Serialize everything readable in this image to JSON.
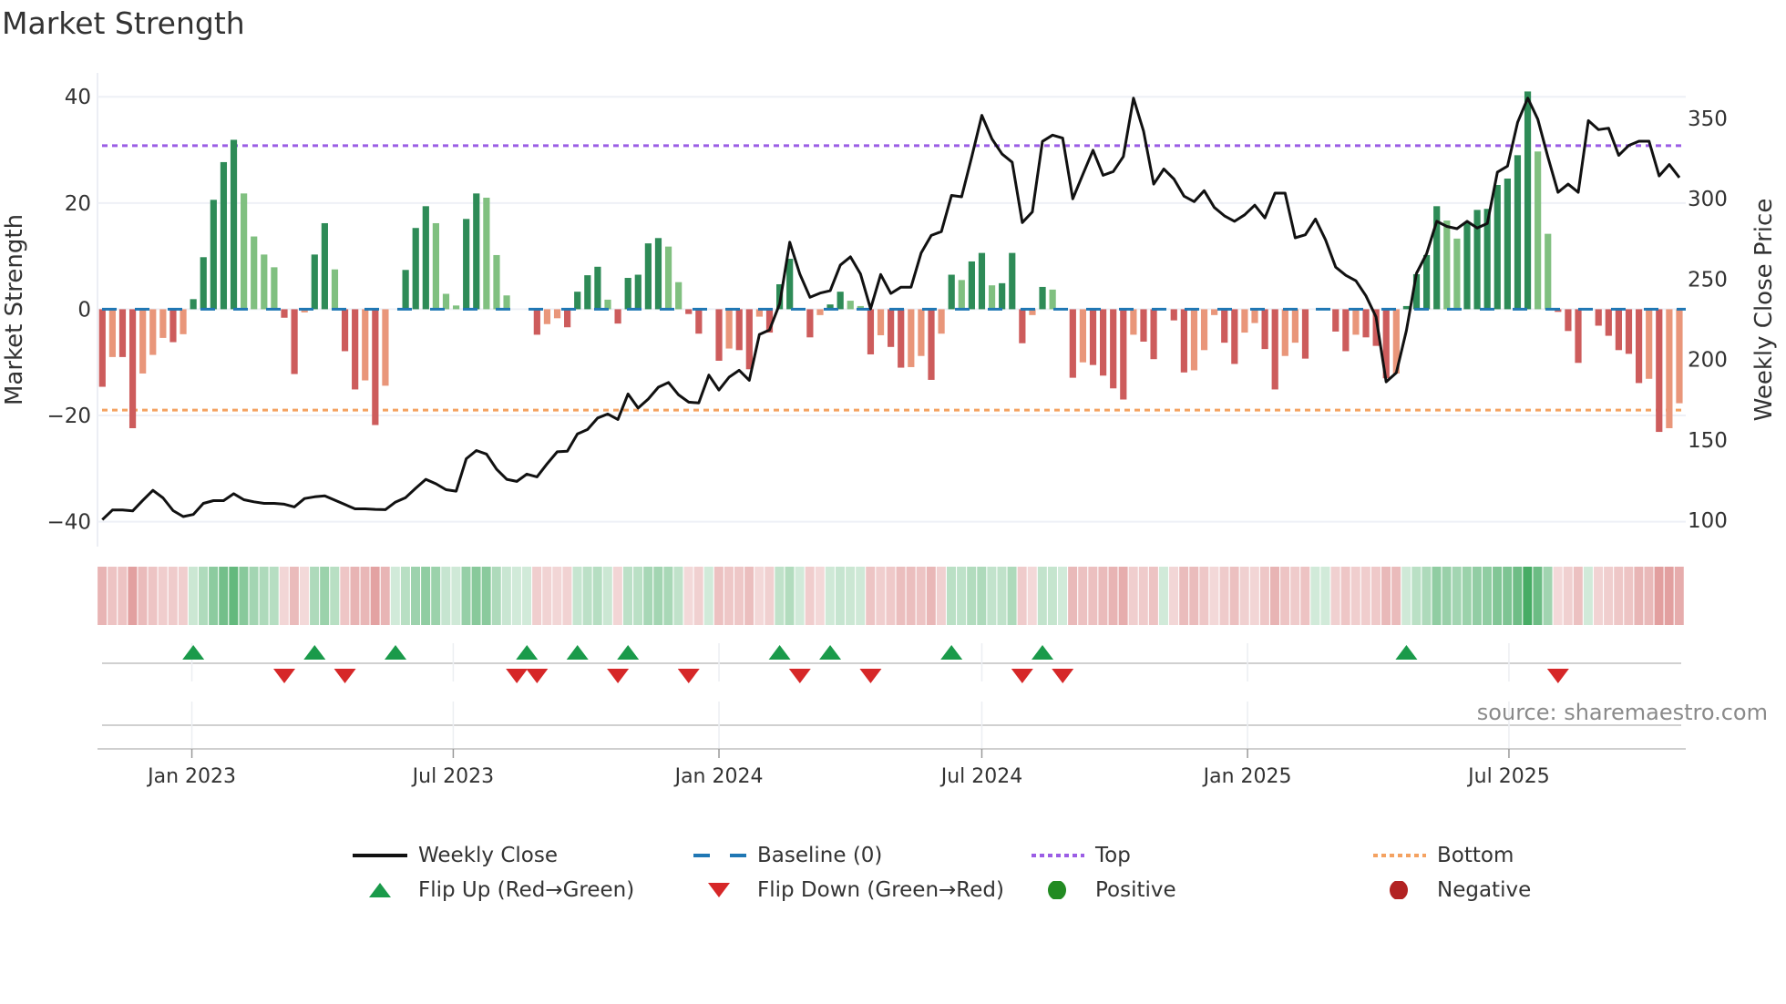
{
  "chart_data": {
    "type": "bar+line",
    "title": "Market Strength",
    "ylabel": "Market Strength",
    "ylabel_right": "Weekly Close Price",
    "ylim": [
      -44.7,
      44.5
    ],
    "ylim_right": [
      83.6,
      378.3
    ],
    "yticks": [
      40,
      20,
      0,
      -20,
      -40
    ],
    "yticks_right": [
      350,
      300,
      250,
      200,
      150,
      100
    ],
    "ytick_labels": [
      "40",
      "20",
      "0",
      "−20",
      "−40"
    ],
    "ytick_labels_right": [
      "350",
      "300",
      "250",
      "200",
      "150",
      "100"
    ],
    "start_date": "2022-10-31",
    "frequency": "weekly",
    "xticks": [
      {
        "label": "Jan 2023",
        "date": "2023-01-01"
      },
      {
        "label": "Jul 2023",
        "date": "2023-07-01"
      },
      {
        "label": "Jan 2024",
        "date": "2024-01-01"
      },
      {
        "label": "Jul 2024",
        "date": "2024-07-01"
      },
      {
        "label": "Jan 2025",
        "date": "2025-01-01"
      },
      {
        "label": "Jul 2025",
        "date": "2025-07-01"
      }
    ],
    "baseline": 0,
    "top_level": 30.8,
    "bottom_level": -19.0,
    "strength": [
      -14.6,
      -9.0,
      -9.0,
      -22.4,
      -12.1,
      -8.6,
      -5.4,
      -6.2,
      -4.7,
      1.9,
      9.8,
      20.6,
      27.7,
      31.9,
      21.8,
      13.7,
      10.3,
      7.9,
      -1.6,
      -12.2,
      -0.6,
      10.3,
      16.2,
      7.5,
      -7.9,
      -15.1,
      -13.4,
      -21.8,
      -14.4,
      0,
      7.4,
      15.3,
      19.4,
      16.2,
      2.9,
      0.7,
      17.0,
      21.8,
      21.0,
      10.2,
      2.6,
      0,
      0,
      -4.8,
      -2.8,
      -1.7,
      -3.4,
      3.3,
      6.4,
      8.0,
      1.8,
      -2.7,
      5.9,
      6.5,
      12.4,
      13.4,
      11.8,
      5.1,
      -0.9,
      -4.6,
      0,
      -9.7,
      -7.4,
      -7.7,
      -11.3,
      -1.4,
      -4.4,
      4.7,
      9.5,
      0,
      -5.3,
      -1.1,
      0.9,
      3.3,
      1.6,
      0.6,
      -8.5,
      -4.9,
      -7.1,
      -11.0,
      -10.9,
      -8.8,
      -13.3,
      -4.6,
      6.5,
      5.5,
      9.0,
      10.6,
      4.5,
      4.9,
      10.6,
      -6.4,
      -1.1,
      4.2,
      3.7,
      0,
      -12.9,
      -10.0,
      -10.5,
      -12.5,
      -14.9,
      -17.0,
      -4.8,
      -6.1,
      -9.4,
      0,
      -2.1,
      -11.9,
      -11.5,
      -7.7,
      -1.1,
      -6.3,
      -10.3,
      -4.4,
      -2.6,
      -7.5,
      -15.1,
      -8.8,
      -6.3,
      -9.3,
      0,
      0,
      -4.2,
      -7.9,
      -4.8,
      -5.3,
      -6.9,
      -13.0,
      -12.1,
      0.6,
      6.6,
      10.2,
      19.4,
      16.7,
      13.3,
      16.2,
      18.7,
      18.9,
      23.4,
      24.6,
      29.0,
      41.0,
      29.7,
      14.2,
      -0.5,
      -4.1,
      -10.1,
      0,
      -3.1,
      -5.0,
      -7.7,
      -8.4,
      -13.9,
      -13.1,
      -23.1,
      -22.4,
      -17.7
    ],
    "weekly_close": [
      100.4,
      106.4,
      106.4,
      105.8,
      112.4,
      118.6,
      113.9,
      106.0,
      102.3,
      103.6,
      110.5,
      112.2,
      112.2,
      116.5,
      112.8,
      111.5,
      110.5,
      110.5,
      110.0,
      108.3,
      113.5,
      114.6,
      115.2,
      112.5,
      109.8,
      107.1,
      107.1,
      106.8,
      106.6,
      111.3,
      114.1,
      119.9,
      125.5,
      122.7,
      119.0,
      118.1,
      138.3,
      143.4,
      141.2,
      131.7,
      125.5,
      124.2,
      128.7,
      127.0,
      135.1,
      142.6,
      143.0,
      153.7,
      156.5,
      163.6,
      166.1,
      162.7,
      178.6,
      169.8,
      175.4,
      182.8,
      185.7,
      178.0,
      173.5,
      173.0,
      190.3,
      181.0,
      189.0,
      193.3,
      187.1,
      215.6,
      218.4,
      234.6,
      273.0,
      253.1,
      238.7,
      241.3,
      242.8,
      258.8,
      263.9,
      253.3,
      231.6,
      252.9,
      241.1,
      245.0,
      245.0,
      266.3,
      277.2,
      279.6,
      302.1,
      301.2,
      326.0,
      351.9,
      337.2,
      327.8,
      322.7,
      285.2,
      291.8,
      335.7,
      339.6,
      337.7,
      300.0,
      315.2,
      330.2,
      314.6,
      316.9,
      326.3,
      362.6,
      342.0,
      309.1,
      318.5,
      312.3,
      301.6,
      298.2,
      305.0,
      294.6,
      289.4,
      286.0,
      290.0,
      296.0,
      288.1,
      303.5,
      303.5,
      275.7,
      277.6,
      287.4,
      274.4,
      257.5,
      252.4,
      249.0,
      239.6,
      226.5,
      186.1,
      191.7,
      218.0,
      253.6,
      265.8,
      286.0,
      282.8,
      281.4,
      286.0,
      281.8,
      284.6,
      316.6,
      320.3,
      347.6,
      362.6,
      349.5,
      326.0,
      304.0,
      309.1,
      304.0,
      348.6,
      343.0,
      343.9,
      327.0,
      333.2,
      335.8,
      335.8,
      314.2,
      321.3,
      313.2
    ],
    "flip_up_weeks": [
      10,
      22,
      30,
      43,
      48,
      53,
      68,
      73,
      85,
      94,
      130
    ],
    "flip_down_weeks": [
      19,
      25,
      42,
      44,
      52,
      59,
      70,
      77,
      92,
      96,
      145
    ],
    "legend_position": "bottom",
    "legend": [
      {
        "label": "Weekly Close",
        "kind": "line"
      },
      {
        "label": "Baseline (0)",
        "kind": "dash"
      },
      {
        "label": "Top",
        "kind": "dot-top"
      },
      {
        "label": "Bottom",
        "kind": "dot-bottom"
      },
      {
        "label": "Flip Up (Red→Green)",
        "kind": "tri-up"
      },
      {
        "label": "Flip Down (Green→Red)",
        "kind": "tri-down"
      },
      {
        "label": "Positive",
        "kind": "dot-pos"
      },
      {
        "label": "Negative",
        "kind": "dot-neg"
      }
    ],
    "source": "source: sharemaestro.com"
  },
  "colors": {
    "pos_strong": "#2e8b57",
    "pos_weak": "#80c080",
    "neg_strong": "#cd5c5c",
    "neg_weak": "#e9967a",
    "line": "#111111",
    "baseline": "#1f77b4",
    "top": "#9b5de5",
    "bottom": "#f4a261",
    "flip_up": "#1a9a4a",
    "flip_down": "#d62728",
    "positive": "#228b22",
    "negative": "#b22222",
    "heat_pos": "46,160,80",
    "heat_neg": "205,92,92"
  }
}
